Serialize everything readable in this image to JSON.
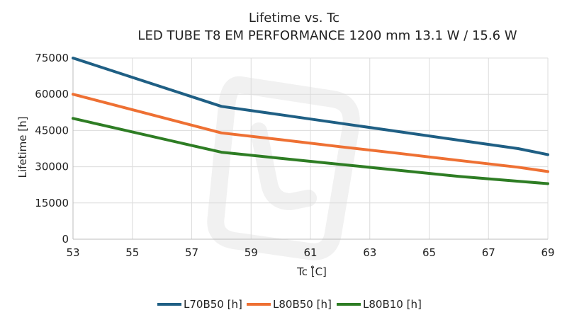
{
  "chart_data": {
    "type": "line",
    "title": "Lifetime vs. Tc",
    "subtitle": "LED TUBE T8 EM PERFORMANCE 1200 mm 13.1 W / 15.6 W",
    "xlabel": "Tc [̊C]",
    "ylabel": "Lifetime [h]",
    "xlim": [
      53,
      69
    ],
    "ylim": [
      0,
      75000
    ],
    "xticks": [
      53,
      55,
      57,
      59,
      61,
      63,
      65,
      67,
      69
    ],
    "yticks": [
      0,
      15000,
      30000,
      45000,
      60000,
      75000
    ],
    "grid": true,
    "legend_position": "bottom",
    "x": [
      53,
      58,
      60,
      62,
      64,
      66,
      68,
      69
    ],
    "series": [
      {
        "name": "L70B50 [h]",
        "color": "#1f5f84",
        "values": [
          75000,
          55000,
          51500,
          48000,
          44500,
          41000,
          37500,
          35000
        ]
      },
      {
        "name": "L80B50 [h]",
        "color": "#ee7033",
        "values": [
          60000,
          44000,
          41200,
          38300,
          35500,
          32600,
          29800,
          28000
        ]
      },
      {
        "name": "L80B10 [h]",
        "color": "#2e7d24",
        "values": [
          50000,
          36000,
          33500,
          31000,
          28500,
          26000,
          24000,
          23000
        ]
      }
    ]
  }
}
